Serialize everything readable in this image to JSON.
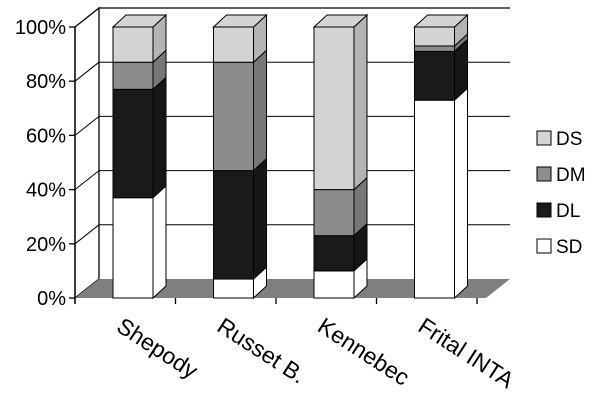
{
  "chart_data": {
    "type": "bar",
    "stacked": true,
    "percent": true,
    "style": "3d",
    "categories": [
      "Shepody",
      "Russet B.",
      "Kennebec",
      "Frital INTA"
    ],
    "series": [
      {
        "name": "SD",
        "color": "#ffffff",
        "values": [
          37,
          7,
          10,
          73
        ]
      },
      {
        "name": "DL",
        "color": "#1a1a1a",
        "values": [
          40,
          40,
          13,
          18
        ]
      },
      {
        "name": "DM",
        "color": "#8c8c8c",
        "values": [
          10,
          40,
          17,
          2
        ]
      },
      {
        "name": "DS",
        "color": "#d4d4d4",
        "values": [
          13,
          13,
          60,
          7
        ]
      }
    ],
    "yticks": [
      "0%",
      "20%",
      "40%",
      "60%",
      "80%",
      "100%"
    ],
    "ylim": [
      0,
      100
    ],
    "grid": true,
    "legend_position": "right",
    "floor_color": "#7f7f7f"
  }
}
